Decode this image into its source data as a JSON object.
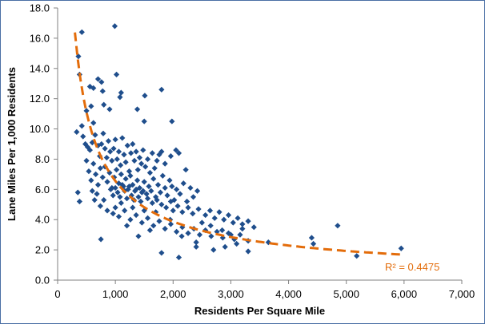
{
  "chart_data": {
    "type": "scatter",
    "title": "",
    "xlabel": "Residents Per Square Mile",
    "ylabel": "Lane Miles Per 1,000 Residents",
    "xlim": [
      0,
      7000
    ],
    "ylim": [
      0,
      18
    ],
    "x_ticks": [
      0,
      1000,
      2000,
      3000,
      4000,
      5000,
      6000,
      7000
    ],
    "x_tick_labels": [
      "0",
      "1,000",
      "2,000",
      "3,000",
      "4,000",
      "5,000",
      "6,000",
      "7,000"
    ],
    "y_ticks": [
      0,
      2,
      4,
      6,
      8,
      10,
      12,
      14,
      16,
      18
    ],
    "y_tick_labels": [
      "0.0",
      "2.0",
      "4.0",
      "6.0",
      "8.0",
      "10.0",
      "12.0",
      "14.0",
      "16.0",
      "18.0"
    ],
    "grid": false,
    "legend": "none",
    "marker_color": "#1f4e8c",
    "trendline": {
      "type": "power",
      "a": 1250,
      "b": -0.76,
      "x_range": [
        300,
        6000
      ],
      "color": "#e36c0a",
      "style": "dashed",
      "r2_label": "R² = 0.4475"
    },
    "points": [
      [
        420,
        16.4
      ],
      [
        990,
        16.8
      ],
      [
        360,
        14.8
      ],
      [
        380,
        13.6
      ],
      [
        700,
        13.3
      ],
      [
        1020,
        13.6
      ],
      [
        560,
        12.8
      ],
      [
        620,
        12.7
      ],
      [
        760,
        13.1
      ],
      [
        780,
        12.5
      ],
      [
        1100,
        12.4
      ],
      [
        1510,
        12.2
      ],
      [
        1800,
        12.6
      ],
      [
        330,
        9.8
      ],
      [
        420,
        10.2
      ],
      [
        500,
        11.2
      ],
      [
        580,
        11.5
      ],
      [
        620,
        10.4
      ],
      [
        800,
        11.6
      ],
      [
        900,
        11.3
      ],
      [
        1080,
        12.1
      ],
      [
        1380,
        11.3
      ],
      [
        1500,
        10.5
      ],
      [
        1980,
        10.5
      ],
      [
        440,
        9.5
      ],
      [
        480,
        9.0
      ],
      [
        520,
        8.8
      ],
      [
        560,
        8.6
      ],
      [
        600,
        9.1
      ],
      [
        650,
        9.6
      ],
      [
        700,
        8.9
      ],
      [
        730,
        8.2
      ],
      [
        760,
        9.0
      ],
      [
        790,
        9.7
      ],
      [
        820,
        8.7
      ],
      [
        850,
        8.1
      ],
      [
        880,
        9.2
      ],
      [
        910,
        8.5
      ],
      [
        940,
        7.9
      ],
      [
        970,
        8.7
      ],
      [
        1000,
        9.3
      ],
      [
        1030,
        8.0
      ],
      [
        1060,
        8.5
      ],
      [
        1090,
        7.6
      ],
      [
        1120,
        9.4
      ],
      [
        1150,
        8.3
      ],
      [
        1180,
        7.8
      ],
      [
        1210,
        8.9
      ],
      [
        1240,
        7.2
      ],
      [
        1270,
        8.4
      ],
      [
        1300,
        9.0
      ],
      [
        1330,
        7.9
      ],
      [
        1360,
        8.5
      ],
      [
        1390,
        7.3
      ],
      [
        1420,
        8.1
      ],
      [
        1450,
        7.7
      ],
      [
        1480,
        8.6
      ],
      [
        1520,
        7.5
      ],
      [
        1560,
        8.0
      ],
      [
        1600,
        7.1
      ],
      [
        1640,
        8.4
      ],
      [
        1680,
        7.4
      ],
      [
        1720,
        7.9
      ],
      [
        1760,
        8.3
      ],
      [
        1800,
        8.5
      ],
      [
        1860,
        7.7
      ],
      [
        1960,
        8.2
      ],
      [
        2050,
        8.6
      ],
      [
        2100,
        8.4
      ],
      [
        2220,
        7.3
      ],
      [
        500,
        7.9
      ],
      [
        540,
        7.2
      ],
      [
        580,
        6.6
      ],
      [
        620,
        7.7
      ],
      [
        660,
        7.0
      ],
      [
        700,
        6.3
      ],
      [
        740,
        7.4
      ],
      [
        780,
        6.8
      ],
      [
        820,
        7.5
      ],
      [
        860,
        6.5
      ],
      [
        900,
        7.1
      ],
      [
        940,
        6.1
      ],
      [
        980,
        6.8
      ],
      [
        1020,
        7.3
      ],
      [
        1060,
        6.4
      ],
      [
        1100,
        7.0
      ],
      [
        1140,
        6.2
      ],
      [
        1180,
        6.7
      ],
      [
        1220,
        6.0
      ],
      [
        1260,
        6.9
      ],
      [
        1300,
        6.3
      ],
      [
        1340,
        5.9
      ],
      [
        1380,
        6.6
      ],
      [
        1420,
        6.1
      ],
      [
        1460,
        5.8
      ],
      [
        1500,
        6.5
      ],
      [
        1540,
        5.7
      ],
      [
        1580,
        6.2
      ],
      [
        1620,
        5.9
      ],
      [
        1660,
        6.7
      ],
      [
        1700,
        5.5
      ],
      [
        1740,
        6.3
      ],
      [
        1780,
        5.8
      ],
      [
        1820,
        6.9
      ],
      [
        1860,
        6.1
      ],
      [
        1900,
        5.6
      ],
      [
        1940,
        6.6
      ],
      [
        1980,
        6.2
      ],
      [
        2020,
        5.3
      ],
      [
        2060,
        6.0
      ],
      [
        2120,
        5.7
      ],
      [
        2180,
        6.4
      ],
      [
        2240,
        5.2
      ],
      [
        2300,
        6.1
      ],
      [
        2350,
        5.5
      ],
      [
        2420,
        5.9
      ],
      [
        920,
        6.0
      ],
      [
        960,
        5.6
      ],
      [
        1000,
        6.1
      ],
      [
        1040,
        5.8
      ],
      [
        1080,
        5.5
      ],
      [
        1120,
        6.3
      ],
      [
        1160,
        5.9
      ],
      [
        1200,
        5.4
      ],
      [
        1240,
        6.2
      ],
      [
        1280,
        5.6
      ],
      [
        1320,
        5.3
      ],
      [
        1360,
        6.0
      ],
      [
        1400,
        5.5
      ],
      [
        1440,
        5.2
      ],
      [
        1480,
        5.9
      ],
      [
        1560,
        5.4
      ],
      [
        1640,
        5.1
      ],
      [
        1720,
        5.3
      ],
      [
        1800,
        5.0
      ],
      [
        1880,
        4.8
      ],
      [
        1960,
        5.2
      ],
      [
        2000,
        4.6
      ],
      [
        2080,
        4.9
      ],
      [
        2160,
        4.5
      ],
      [
        2260,
        4.8
      ],
      [
        2340,
        4.4
      ],
      [
        2440,
        4.7
      ],
      [
        2560,
        4.3
      ],
      [
        2640,
        4.6
      ],
      [
        2720,
        4.1
      ],
      [
        2800,
        4.5
      ],
      [
        2880,
        4.0
      ],
      [
        2960,
        4.3
      ],
      [
        3040,
        3.8
      ],
      [
        3120,
        4.1
      ],
      [
        3200,
        3.7
      ],
      [
        3300,
        3.9
      ],
      [
        3400,
        3.5
      ],
      [
        600,
        5.9
      ],
      [
        640,
        5.3
      ],
      [
        680,
        5.7
      ],
      [
        740,
        4.9
      ],
      [
        800,
        5.3
      ],
      [
        860,
        4.6
      ],
      [
        960,
        4.4
      ],
      [
        1060,
        4.2
      ],
      [
        1160,
        4.6
      ],
      [
        1260,
        4.0
      ],
      [
        1360,
        4.3
      ],
      [
        1460,
        3.8
      ],
      [
        1560,
        4.1
      ],
      [
        1660,
        3.6
      ],
      [
        1760,
        3.9
      ],
      [
        1860,
        3.4
      ],
      [
        1960,
        3.7
      ],
      [
        2060,
        3.2
      ],
      [
        2160,
        3.5
      ],
      [
        2260,
        3.1
      ],
      [
        2360,
        3.4
      ],
      [
        2460,
        3.0
      ],
      [
        2560,
        3.3
      ],
      [
        2660,
        2.9
      ],
      [
        2760,
        3.2
      ],
      [
        2860,
        2.8
      ],
      [
        2960,
        3.1
      ],
      [
        3060,
        2.7
      ],
      [
        3160,
        3.0
      ],
      [
        3300,
        2.6
      ],
      [
        350,
        5.8
      ],
      [
        380,
        5.2
      ],
      [
        750,
        2.7
      ],
      [
        1000,
        4.8
      ],
      [
        1200,
        3.6
      ],
      [
        1400,
        2.9
      ],
      [
        1600,
        3.3
      ],
      [
        1800,
        1.8
      ],
      [
        2100,
        1.5
      ],
      [
        2400,
        2.5
      ],
      [
        2700,
        2.0
      ],
      [
        2900,
        2.2
      ],
      [
        3100,
        2.4
      ],
      [
        3300,
        1.9
      ],
      [
        3650,
        2.5
      ],
      [
        4400,
        2.8
      ],
      [
        4430,
        2.4
      ],
      [
        4850,
        3.6
      ],
      [
        5180,
        1.6
      ],
      [
        5950,
        2.1
      ],
      [
        2500,
        3.8
      ],
      [
        2650,
        3.6
      ],
      [
        2850,
        3.3
      ],
      [
        3000,
        3.0
      ],
      [
        3200,
        3.4
      ],
      [
        2400,
        2.2
      ],
      [
        2150,
        2.9
      ],
      [
        1950,
        4.0
      ],
      [
        1700,
        4.5
      ],
      [
        1500,
        4.6
      ],
      [
        1300,
        4.8
      ],
      [
        1100,
        5.1
      ]
    ]
  }
}
